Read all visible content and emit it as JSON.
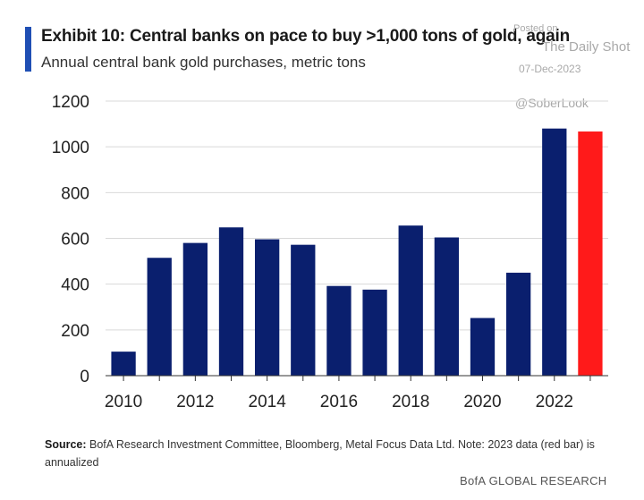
{
  "header": {
    "title": "Exhibit 10: Central banks on pace to buy >1,000 tons of gold, again",
    "subtitle": "Annual central bank gold purchases, metric tons"
  },
  "watermark": {
    "posted": "Posted on",
    "publication": "The Daily Shot",
    "date": "07-Dec-2023",
    "handle": "@SoberLook"
  },
  "chart_data": {
    "type": "bar",
    "title": "Exhibit 10: Central banks on pace to buy >1,000 tons of gold, again",
    "subtitle": "Annual central bank gold purchases, metric tons",
    "xlabel": "",
    "ylabel": "",
    "categories": [
      "2010",
      "2011",
      "2012",
      "2013",
      "2014",
      "2015",
      "2016",
      "2017",
      "2018",
      "2019",
      "2020",
      "2021",
      "2022",
      "2023"
    ],
    "values": [
      105,
      515,
      580,
      648,
      596,
      572,
      392,
      376,
      656,
      604,
      252,
      450,
      1080,
      1067
    ],
    "x_tick_labels": [
      "2010",
      "2012",
      "2014",
      "2016",
      "2018",
      "2020",
      "2022"
    ],
    "y_ticks": [
      0,
      200,
      400,
      600,
      800,
      1000,
      1200
    ],
    "ylim": [
      0,
      1200
    ],
    "grid": true,
    "colors": {
      "default": "#0a1f6e",
      "highlight": "#ff1a1a",
      "grid": "#d9d9d9",
      "axis": "#333333"
    },
    "highlight_index": 13
  },
  "source": {
    "label": "Source:",
    "text": " BofA Research Investment Committee, Bloomberg, Metal Focus Data Ltd. Note: 2023 data (red bar) is annualized"
  },
  "footer": "BofA GLOBAL RESEARCH"
}
